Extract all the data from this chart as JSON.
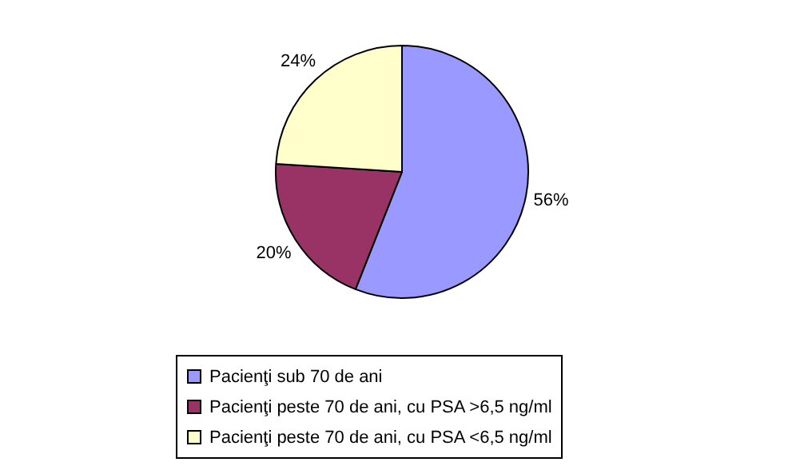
{
  "chart_data": {
    "type": "pie",
    "categories": [
      "Pacienţi sub 70 de ani",
      "Pacienţi peste 70 de ani, cu PSA >6,5 ng/ml",
      "Pacienţi peste 70 de ani, cu PSA <6,5 ng/ml"
    ],
    "values": [
      56,
      20,
      24
    ],
    "colors": [
      "#9999ff",
      "#993366",
      "#ffffcc"
    ],
    "value_labels": [
      "56%",
      "20%",
      "24%"
    ],
    "legend": "bottom"
  }
}
